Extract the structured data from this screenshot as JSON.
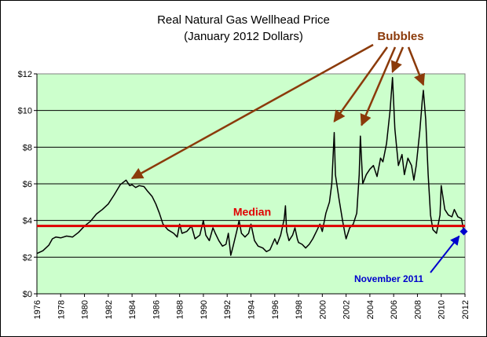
{
  "chart_data": {
    "type": "line",
    "title": "Real Natural Gas Wellhead Price",
    "subtitle": "(January 2012 Dollars)",
    "xlabel": "",
    "ylabel": "",
    "xlim": [
      1976,
      2012
    ],
    "ylim": [
      0,
      12
    ],
    "y_ticks": [
      0,
      2,
      4,
      6,
      8,
      10,
      12
    ],
    "y_tick_labels": [
      "$0",
      "$2",
      "$4",
      "$6",
      "$8",
      "$10",
      "$12"
    ],
    "x_ticks": [
      1976,
      1978,
      1980,
      1982,
      1984,
      1986,
      1988,
      1990,
      1992,
      1994,
      1996,
      1998,
      2000,
      2002,
      2004,
      2006,
      2008,
      2010,
      2012
    ],
    "x_tick_labels": [
      "1976",
      "1978",
      "1980",
      "1982",
      "1984",
      "1986",
      "1988",
      "1990",
      "1992",
      "1994",
      "1996",
      "1998",
      "2000",
      "2002",
      "2004",
      "2006",
      "2008",
      "2010",
      "2012"
    ],
    "grid": "horizontal",
    "plot_background": "#ccffcc",
    "series": [
      {
        "color": "#000000",
        "points": [
          [
            1976.0,
            2.2
          ],
          [
            1976.5,
            2.35
          ],
          [
            1977.0,
            2.65
          ],
          [
            1977.3,
            3.0
          ],
          [
            1977.6,
            3.1
          ],
          [
            1978.0,
            3.05
          ],
          [
            1978.5,
            3.15
          ],
          [
            1979.0,
            3.1
          ],
          [
            1979.5,
            3.35
          ],
          [
            1980.0,
            3.7
          ],
          [
            1980.5,
            3.95
          ],
          [
            1981.0,
            4.35
          ],
          [
            1981.5,
            4.6
          ],
          [
            1982.0,
            4.9
          ],
          [
            1982.5,
            5.4
          ],
          [
            1983.0,
            5.95
          ],
          [
            1983.5,
            6.2
          ],
          [
            1983.8,
            5.9
          ],
          [
            1984.0,
            5.95
          ],
          [
            1984.3,
            5.8
          ],
          [
            1984.6,
            5.9
          ],
          [
            1985.0,
            5.85
          ],
          [
            1985.3,
            5.6
          ],
          [
            1985.7,
            5.3
          ],
          [
            1986.0,
            4.9
          ],
          [
            1986.3,
            4.4
          ],
          [
            1986.6,
            3.8
          ],
          [
            1987.0,
            3.5
          ],
          [
            1987.5,
            3.3
          ],
          [
            1987.8,
            3.1
          ],
          [
            1988.0,
            3.8
          ],
          [
            1988.2,
            3.3
          ],
          [
            1988.6,
            3.4
          ],
          [
            1989.0,
            3.7
          ],
          [
            1989.3,
            3.0
          ],
          [
            1989.7,
            3.2
          ],
          [
            1990.0,
            4.0
          ],
          [
            1990.2,
            3.2
          ],
          [
            1990.5,
            2.9
          ],
          [
            1990.8,
            3.6
          ],
          [
            1991.0,
            3.3
          ],
          [
            1991.3,
            2.9
          ],
          [
            1991.6,
            2.6
          ],
          [
            1991.9,
            2.7
          ],
          [
            1992.1,
            3.3
          ],
          [
            1992.3,
            2.1
          ],
          [
            1992.5,
            2.6
          ],
          [
            1992.8,
            3.4
          ],
          [
            1993.0,
            4.0
          ],
          [
            1993.2,
            3.3
          ],
          [
            1993.5,
            3.1
          ],
          [
            1993.8,
            3.3
          ],
          [
            1994.0,
            3.8
          ],
          [
            1994.3,
            2.9
          ],
          [
            1994.6,
            2.6
          ],
          [
            1995.0,
            2.5
          ],
          [
            1995.3,
            2.3
          ],
          [
            1995.6,
            2.4
          ],
          [
            1996.0,
            3.0
          ],
          [
            1996.2,
            2.7
          ],
          [
            1996.5,
            3.2
          ],
          [
            1996.8,
            4.1
          ],
          [
            1996.9,
            4.8
          ],
          [
            1997.0,
            3.4
          ],
          [
            1997.2,
            2.9
          ],
          [
            1997.5,
            3.2
          ],
          [
            1997.7,
            3.6
          ],
          [
            1997.9,
            3.0
          ],
          [
            1998.0,
            2.8
          ],
          [
            1998.3,
            2.7
          ],
          [
            1998.6,
            2.5
          ],
          [
            1998.9,
            2.7
          ],
          [
            1999.2,
            3.0
          ],
          [
            1999.5,
            3.4
          ],
          [
            1999.8,
            3.8
          ],
          [
            2000.0,
            3.4
          ],
          [
            2000.3,
            4.4
          ],
          [
            2000.6,
            5.0
          ],
          [
            2000.8,
            6.0
          ],
          [
            2001.0,
            8.8
          ],
          [
            2001.1,
            6.5
          ],
          [
            2001.4,
            5.2
          ],
          [
            2001.7,
            4.0
          ],
          [
            2001.9,
            3.3
          ],
          [
            2002.0,
            3.0
          ],
          [
            2002.3,
            3.6
          ],
          [
            2002.6,
            3.8
          ],
          [
            2002.9,
            4.4
          ],
          [
            2003.1,
            6.5
          ],
          [
            2003.2,
            8.6
          ],
          [
            2003.4,
            6.0
          ],
          [
            2003.7,
            6.5
          ],
          [
            2004.0,
            6.8
          ],
          [
            2004.3,
            7.0
          ],
          [
            2004.6,
            6.4
          ],
          [
            2004.9,
            7.4
          ],
          [
            2005.1,
            7.2
          ],
          [
            2005.4,
            8.2
          ],
          [
            2005.7,
            10.0
          ],
          [
            2005.9,
            11.8
          ],
          [
            2006.1,
            9.0
          ],
          [
            2006.4,
            7.0
          ],
          [
            2006.7,
            7.6
          ],
          [
            2006.9,
            6.5
          ],
          [
            2007.2,
            7.4
          ],
          [
            2007.5,
            7.0
          ],
          [
            2007.7,
            6.2
          ],
          [
            2007.9,
            7.0
          ],
          [
            2008.2,
            8.9
          ],
          [
            2008.4,
            10.5
          ],
          [
            2008.5,
            11.1
          ],
          [
            2008.7,
            9.5
          ],
          [
            2008.9,
            6.5
          ],
          [
            2009.1,
            4.3
          ],
          [
            2009.3,
            3.5
          ],
          [
            2009.6,
            3.3
          ],
          [
            2009.9,
            4.3
          ],
          [
            2010.0,
            5.9
          ],
          [
            2010.3,
            4.6
          ],
          [
            2010.6,
            4.3
          ],
          [
            2010.9,
            4.2
          ],
          [
            2011.1,
            4.6
          ],
          [
            2011.4,
            4.2
          ],
          [
            2011.7,
            4.1
          ],
          [
            2011.9,
            3.4
          ]
        ]
      }
    ],
    "median": {
      "label": "Median",
      "value": 3.7,
      "color": "#e00000"
    },
    "annotations": {
      "bubbles_label": "Bubbles",
      "bubbles_color": "#8b3a0a",
      "bubble_targets": [
        [
          1984.0,
          6.3
        ],
        [
          2001.0,
          9.4
        ],
        [
          2003.3,
          9.2
        ],
        [
          2005.9,
          12.1
        ],
        [
          2008.5,
          11.4
        ]
      ],
      "last_point_label": "November 2011",
      "last_point": [
        2011.9,
        3.4
      ],
      "last_point_color": "#0000cc"
    }
  }
}
